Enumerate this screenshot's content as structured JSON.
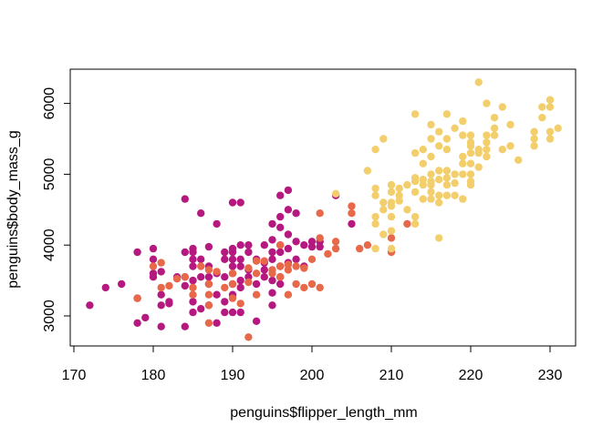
{
  "chart_data": {
    "type": "scatter",
    "title": "",
    "xlabel": "penguins$flipper_length_mm",
    "ylabel": "penguins$body_mass_g",
    "xlim": [
      172,
      231
    ],
    "ylim": [
      2700,
      6300
    ],
    "xticks": [
      170,
      180,
      190,
      200,
      210,
      220,
      230
    ],
    "yticks": [
      3000,
      4000,
      5000,
      6000
    ],
    "grid": false,
    "legend": "none",
    "series": [
      {
        "color": "#B5197F",
        "points": [
          [
            172,
            3150
          ],
          [
            174,
            3400
          ],
          [
            176,
            3450
          ],
          [
            178,
            3900
          ],
          [
            178,
            3250
          ],
          [
            178,
            2900
          ],
          [
            179,
            2975
          ],
          [
            180,
            3950
          ],
          [
            180,
            3800
          ],
          [
            180,
            3600
          ],
          [
            180,
            3550
          ],
          [
            181,
            3625
          ],
          [
            181,
            3300
          ],
          [
            181,
            3150
          ],
          [
            181,
            2850
          ],
          [
            182,
            3200
          ],
          [
            182,
            3175
          ],
          [
            183,
            3550
          ],
          [
            184,
            3550
          ],
          [
            184,
            3900
          ],
          [
            184,
            4650
          ],
          [
            184,
            3425
          ],
          [
            184,
            2850
          ],
          [
            185,
            3900
          ],
          [
            185,
            3950
          ],
          [
            185,
            3800
          ],
          [
            185,
            3700
          ],
          [
            185,
            3500
          ],
          [
            185,
            3200
          ],
          [
            185,
            3050
          ],
          [
            186,
            4450
          ],
          [
            186,
            3800
          ],
          [
            186,
            3550
          ],
          [
            186,
            3100
          ],
          [
            187,
            3700
          ],
          [
            187,
            3450
          ],
          [
            187,
            3550
          ],
          [
            187,
            3150
          ],
          [
            187,
            3975
          ],
          [
            188,
            4300
          ],
          [
            188,
            3600
          ],
          [
            188,
            3300
          ],
          [
            188,
            2900
          ],
          [
            189,
            3900
          ],
          [
            189,
            3800
          ],
          [
            189,
            3550
          ],
          [
            189,
            3200
          ],
          [
            189,
            3050
          ],
          [
            190,
            4600
          ],
          [
            190,
            3900
          ],
          [
            190,
            3800
          ],
          [
            190,
            3700
          ],
          [
            190,
            3600
          ],
          [
            190,
            3450
          ],
          [
            190,
            3300
          ],
          [
            190,
            3050
          ],
          [
            190,
            3950
          ],
          [
            191,
            4600
          ],
          [
            191,
            4000
          ],
          [
            191,
            3800
          ],
          [
            191,
            3700
          ],
          [
            191,
            3500
          ],
          [
            191,
            3050
          ],
          [
            191,
            3400
          ],
          [
            192,
            4000
          ],
          [
            192,
            3900
          ],
          [
            192,
            3650
          ],
          [
            192,
            3550
          ],
          [
            193,
            3800
          ],
          [
            193,
            3450
          ],
          [
            193,
            2925
          ],
          [
            194,
            4000
          ],
          [
            194,
            3750
          ],
          [
            194,
            3650
          ],
          [
            194,
            3550
          ],
          [
            195,
            4300
          ],
          [
            195,
            3900
          ],
          [
            195,
            3800
          ],
          [
            195,
            3500
          ],
          [
            195,
            3325
          ],
          [
            195,
            3150
          ],
          [
            195,
            4075
          ],
          [
            196,
            4700
          ],
          [
            196,
            4400
          ],
          [
            196,
            4250
          ],
          [
            196,
            4000
          ],
          [
            196,
            3900
          ],
          [
            196,
            3700
          ],
          [
            196,
            3450
          ],
          [
            196,
            3550
          ],
          [
            197,
            4500
          ],
          [
            197,
            4775
          ],
          [
            197,
            4150
          ],
          [
            197,
            3950
          ],
          [
            197,
            3750
          ],
          [
            198,
            4450
          ],
          [
            198,
            4050
          ],
          [
            198,
            3800
          ],
          [
            199,
            4000
          ],
          [
            199,
            3700
          ],
          [
            200,
            3975
          ],
          [
            200,
            4050
          ],
          [
            201,
            3975
          ],
          [
            201,
            4050
          ],
          [
            203,
            4700
          ],
          [
            205,
            4300
          ]
        ]
      },
      {
        "color": "#E8694A",
        "points": [
          [
            178,
            3250
          ],
          [
            180,
            3700
          ],
          [
            181,
            3750
          ],
          [
            181,
            3400
          ],
          [
            182,
            3425
          ],
          [
            183,
            3525
          ],
          [
            184,
            3550
          ],
          [
            185,
            3400
          ],
          [
            185,
            3300
          ],
          [
            186,
            3700
          ],
          [
            187,
            3650
          ],
          [
            187,
            3300
          ],
          [
            187,
            3450
          ],
          [
            187,
            3150
          ],
          [
            187,
            2900
          ],
          [
            188,
            3625
          ],
          [
            189,
            3400
          ],
          [
            190,
            3450
          ],
          [
            190,
            3600
          ],
          [
            190,
            3250
          ],
          [
            191,
            3175
          ],
          [
            192,
            2700
          ],
          [
            192,
            3675
          ],
          [
            192,
            3475
          ],
          [
            193,
            3775
          ],
          [
            193,
            3300
          ],
          [
            193,
            3600
          ],
          [
            194,
            3775
          ],
          [
            195,
            3650
          ],
          [
            195,
            3600
          ],
          [
            196,
            3550
          ],
          [
            196,
            4000
          ],
          [
            196,
            3700
          ],
          [
            197,
            3300
          ],
          [
            197,
            3725
          ],
          [
            197,
            3650
          ],
          [
            198,
            3700
          ],
          [
            198,
            3450
          ],
          [
            199,
            3675
          ],
          [
            199,
            3400
          ],
          [
            200,
            3800
          ],
          [
            200,
            3450
          ],
          [
            201,
            4100
          ],
          [
            201,
            3400
          ],
          [
            201,
            4450
          ],
          [
            202,
            3875
          ],
          [
            203,
            4050
          ],
          [
            203,
            3950
          ],
          [
            205,
            4550
          ],
          [
            205,
            4450
          ],
          [
            206,
            3950
          ],
          [
            207,
            4000
          ],
          [
            210,
            3900
          ],
          [
            210,
            4100
          ],
          [
            212,
            4300
          ]
        ]
      },
      {
        "color": "#F2CF6C",
        "points": [
          [
            203,
            4725
          ],
          [
            207,
            5050
          ],
          [
            208,
            4800
          ],
          [
            208,
            4700
          ],
          [
            208,
            5350
          ],
          [
            208,
            4400
          ],
          [
            208,
            3950
          ],
          [
            208,
            4300
          ],
          [
            209,
            4600
          ],
          [
            209,
            5500
          ],
          [
            209,
            4500
          ],
          [
            209,
            4150
          ],
          [
            210,
            4850
          ],
          [
            210,
            4750
          ],
          [
            210,
            4400
          ],
          [
            210,
            4600
          ],
          [
            210,
            3950
          ],
          [
            210,
            4200
          ],
          [
            210,
            4550
          ],
          [
            211,
            4800
          ],
          [
            211,
            4625
          ],
          [
            211,
            4700
          ],
          [
            212,
            4500
          ],
          [
            212,
            4850
          ],
          [
            213,
            4950
          ],
          [
            213,
            4750
          ],
          [
            213,
            4400
          ],
          [
            213,
            4900
          ],
          [
            213,
            5850
          ],
          [
            213,
            5300
          ],
          [
            213,
            4300
          ],
          [
            214,
            4850
          ],
          [
            214,
            5350
          ],
          [
            214,
            4650
          ],
          [
            214,
            4925
          ],
          [
            214,
            5150
          ],
          [
            215,
            4650
          ],
          [
            215,
            5000
          ],
          [
            215,
            5500
          ],
          [
            215,
            4750
          ],
          [
            215,
            4900
          ],
          [
            215,
            5250
          ],
          [
            215,
            5700
          ],
          [
            215,
            4850
          ],
          [
            216,
            4700
          ],
          [
            216,
            4925
          ],
          [
            216,
            4600
          ],
          [
            216,
            4100
          ],
          [
            216,
            5400
          ],
          [
            216,
            5050
          ],
          [
            216,
            5600
          ],
          [
            217,
            5350
          ],
          [
            217,
            5050
          ],
          [
            217,
            4850
          ],
          [
            217,
            4700
          ],
          [
            217,
            5500
          ],
          [
            217,
            5850
          ],
          [
            217,
            4950
          ],
          [
            218,
            5000
          ],
          [
            218,
            4875
          ],
          [
            218,
            5650
          ],
          [
            218,
            4700
          ],
          [
            219,
            5550
          ],
          [
            219,
            5150
          ],
          [
            219,
            4650
          ],
          [
            219,
            5250
          ],
          [
            219,
            5000
          ],
          [
            219,
            5750
          ],
          [
            220,
            5300
          ],
          [
            220,
            5150
          ],
          [
            220,
            5400
          ],
          [
            220,
            4900
          ],
          [
            220,
            4850
          ],
          [
            220,
            5450
          ],
          [
            220,
            5000
          ],
          [
            220,
            5550
          ],
          [
            221,
            6300
          ],
          [
            221,
            5300
          ],
          [
            221,
            5100
          ],
          [
            221,
            5350
          ],
          [
            222,
            5250
          ],
          [
            222,
            6000
          ],
          [
            222,
            5450
          ],
          [
            222,
            5550
          ],
          [
            222,
            5350
          ],
          [
            223,
            5650
          ],
          [
            223,
            5550
          ],
          [
            223,
            5800
          ],
          [
            224,
            5350
          ],
          [
            224,
            5950
          ],
          [
            225,
            5700
          ],
          [
            225,
            5400
          ],
          [
            226,
            5200
          ],
          [
            228,
            5600
          ],
          [
            228,
            5400
          ],
          [
            228,
            5500
          ],
          [
            229,
            5800
          ],
          [
            229,
            5950
          ],
          [
            230,
            5950
          ],
          [
            230,
            6050
          ],
          [
            230,
            5500
          ],
          [
            230,
            5600
          ],
          [
            231,
            5650
          ]
        ]
      }
    ]
  }
}
